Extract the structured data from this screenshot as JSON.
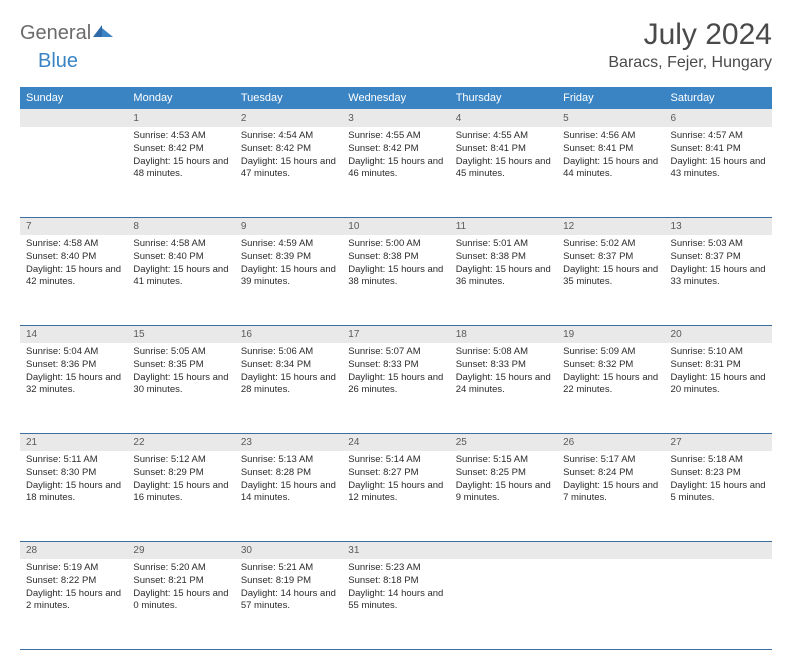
{
  "logo": {
    "text1": "General",
    "text2": "Blue"
  },
  "title": "July 2024",
  "location": "Baracs, Fejer, Hungary",
  "colors": {
    "header_bg": "#3a84c4",
    "header_text": "#ffffff",
    "daynum_bg": "#e9e9e9",
    "daynum_text": "#5b5b5b",
    "border": "#3a6fa0",
    "title_text": "#4a4a4a",
    "logo_gray": "#6b6b6b",
    "logo_blue": "#3a84c4"
  },
  "day_names": [
    "Sunday",
    "Monday",
    "Tuesday",
    "Wednesday",
    "Thursday",
    "Friday",
    "Saturday"
  ],
  "weeks": [
    [
      {
        "num": "",
        "sunrise": "",
        "sunset": "",
        "daylight": ""
      },
      {
        "num": "1",
        "sunrise": "Sunrise: 4:53 AM",
        "sunset": "Sunset: 8:42 PM",
        "daylight": "Daylight: 15 hours and 48 minutes."
      },
      {
        "num": "2",
        "sunrise": "Sunrise: 4:54 AM",
        "sunset": "Sunset: 8:42 PM",
        "daylight": "Daylight: 15 hours and 47 minutes."
      },
      {
        "num": "3",
        "sunrise": "Sunrise: 4:55 AM",
        "sunset": "Sunset: 8:42 PM",
        "daylight": "Daylight: 15 hours and 46 minutes."
      },
      {
        "num": "4",
        "sunrise": "Sunrise: 4:55 AM",
        "sunset": "Sunset: 8:41 PM",
        "daylight": "Daylight: 15 hours and 45 minutes."
      },
      {
        "num": "5",
        "sunrise": "Sunrise: 4:56 AM",
        "sunset": "Sunset: 8:41 PM",
        "daylight": "Daylight: 15 hours and 44 minutes."
      },
      {
        "num": "6",
        "sunrise": "Sunrise: 4:57 AM",
        "sunset": "Sunset: 8:41 PM",
        "daylight": "Daylight: 15 hours and 43 minutes."
      }
    ],
    [
      {
        "num": "7",
        "sunrise": "Sunrise: 4:58 AM",
        "sunset": "Sunset: 8:40 PM",
        "daylight": "Daylight: 15 hours and 42 minutes."
      },
      {
        "num": "8",
        "sunrise": "Sunrise: 4:58 AM",
        "sunset": "Sunset: 8:40 PM",
        "daylight": "Daylight: 15 hours and 41 minutes."
      },
      {
        "num": "9",
        "sunrise": "Sunrise: 4:59 AM",
        "sunset": "Sunset: 8:39 PM",
        "daylight": "Daylight: 15 hours and 39 minutes."
      },
      {
        "num": "10",
        "sunrise": "Sunrise: 5:00 AM",
        "sunset": "Sunset: 8:38 PM",
        "daylight": "Daylight: 15 hours and 38 minutes."
      },
      {
        "num": "11",
        "sunrise": "Sunrise: 5:01 AM",
        "sunset": "Sunset: 8:38 PM",
        "daylight": "Daylight: 15 hours and 36 minutes."
      },
      {
        "num": "12",
        "sunrise": "Sunrise: 5:02 AM",
        "sunset": "Sunset: 8:37 PM",
        "daylight": "Daylight: 15 hours and 35 minutes."
      },
      {
        "num": "13",
        "sunrise": "Sunrise: 5:03 AM",
        "sunset": "Sunset: 8:37 PM",
        "daylight": "Daylight: 15 hours and 33 minutes."
      }
    ],
    [
      {
        "num": "14",
        "sunrise": "Sunrise: 5:04 AM",
        "sunset": "Sunset: 8:36 PM",
        "daylight": "Daylight: 15 hours and 32 minutes."
      },
      {
        "num": "15",
        "sunrise": "Sunrise: 5:05 AM",
        "sunset": "Sunset: 8:35 PM",
        "daylight": "Daylight: 15 hours and 30 minutes."
      },
      {
        "num": "16",
        "sunrise": "Sunrise: 5:06 AM",
        "sunset": "Sunset: 8:34 PM",
        "daylight": "Daylight: 15 hours and 28 minutes."
      },
      {
        "num": "17",
        "sunrise": "Sunrise: 5:07 AM",
        "sunset": "Sunset: 8:33 PM",
        "daylight": "Daylight: 15 hours and 26 minutes."
      },
      {
        "num": "18",
        "sunrise": "Sunrise: 5:08 AM",
        "sunset": "Sunset: 8:33 PM",
        "daylight": "Daylight: 15 hours and 24 minutes."
      },
      {
        "num": "19",
        "sunrise": "Sunrise: 5:09 AM",
        "sunset": "Sunset: 8:32 PM",
        "daylight": "Daylight: 15 hours and 22 minutes."
      },
      {
        "num": "20",
        "sunrise": "Sunrise: 5:10 AM",
        "sunset": "Sunset: 8:31 PM",
        "daylight": "Daylight: 15 hours and 20 minutes."
      }
    ],
    [
      {
        "num": "21",
        "sunrise": "Sunrise: 5:11 AM",
        "sunset": "Sunset: 8:30 PM",
        "daylight": "Daylight: 15 hours and 18 minutes."
      },
      {
        "num": "22",
        "sunrise": "Sunrise: 5:12 AM",
        "sunset": "Sunset: 8:29 PM",
        "daylight": "Daylight: 15 hours and 16 minutes."
      },
      {
        "num": "23",
        "sunrise": "Sunrise: 5:13 AM",
        "sunset": "Sunset: 8:28 PM",
        "daylight": "Daylight: 15 hours and 14 minutes."
      },
      {
        "num": "24",
        "sunrise": "Sunrise: 5:14 AM",
        "sunset": "Sunset: 8:27 PM",
        "daylight": "Daylight: 15 hours and 12 minutes."
      },
      {
        "num": "25",
        "sunrise": "Sunrise: 5:15 AM",
        "sunset": "Sunset: 8:25 PM",
        "daylight": "Daylight: 15 hours and 9 minutes."
      },
      {
        "num": "26",
        "sunrise": "Sunrise: 5:17 AM",
        "sunset": "Sunset: 8:24 PM",
        "daylight": "Daylight: 15 hours and 7 minutes."
      },
      {
        "num": "27",
        "sunrise": "Sunrise: 5:18 AM",
        "sunset": "Sunset: 8:23 PM",
        "daylight": "Daylight: 15 hours and 5 minutes."
      }
    ],
    [
      {
        "num": "28",
        "sunrise": "Sunrise: 5:19 AM",
        "sunset": "Sunset: 8:22 PM",
        "daylight": "Daylight: 15 hours and 2 minutes."
      },
      {
        "num": "29",
        "sunrise": "Sunrise: 5:20 AM",
        "sunset": "Sunset: 8:21 PM",
        "daylight": "Daylight: 15 hours and 0 minutes."
      },
      {
        "num": "30",
        "sunrise": "Sunrise: 5:21 AM",
        "sunset": "Sunset: 8:19 PM",
        "daylight": "Daylight: 14 hours and 57 minutes."
      },
      {
        "num": "31",
        "sunrise": "Sunrise: 5:23 AM",
        "sunset": "Sunset: 8:18 PM",
        "daylight": "Daylight: 14 hours and 55 minutes."
      },
      {
        "num": "",
        "sunrise": "",
        "sunset": "",
        "daylight": ""
      },
      {
        "num": "",
        "sunrise": "",
        "sunset": "",
        "daylight": ""
      },
      {
        "num": "",
        "sunrise": "",
        "sunset": "",
        "daylight": ""
      }
    ]
  ]
}
